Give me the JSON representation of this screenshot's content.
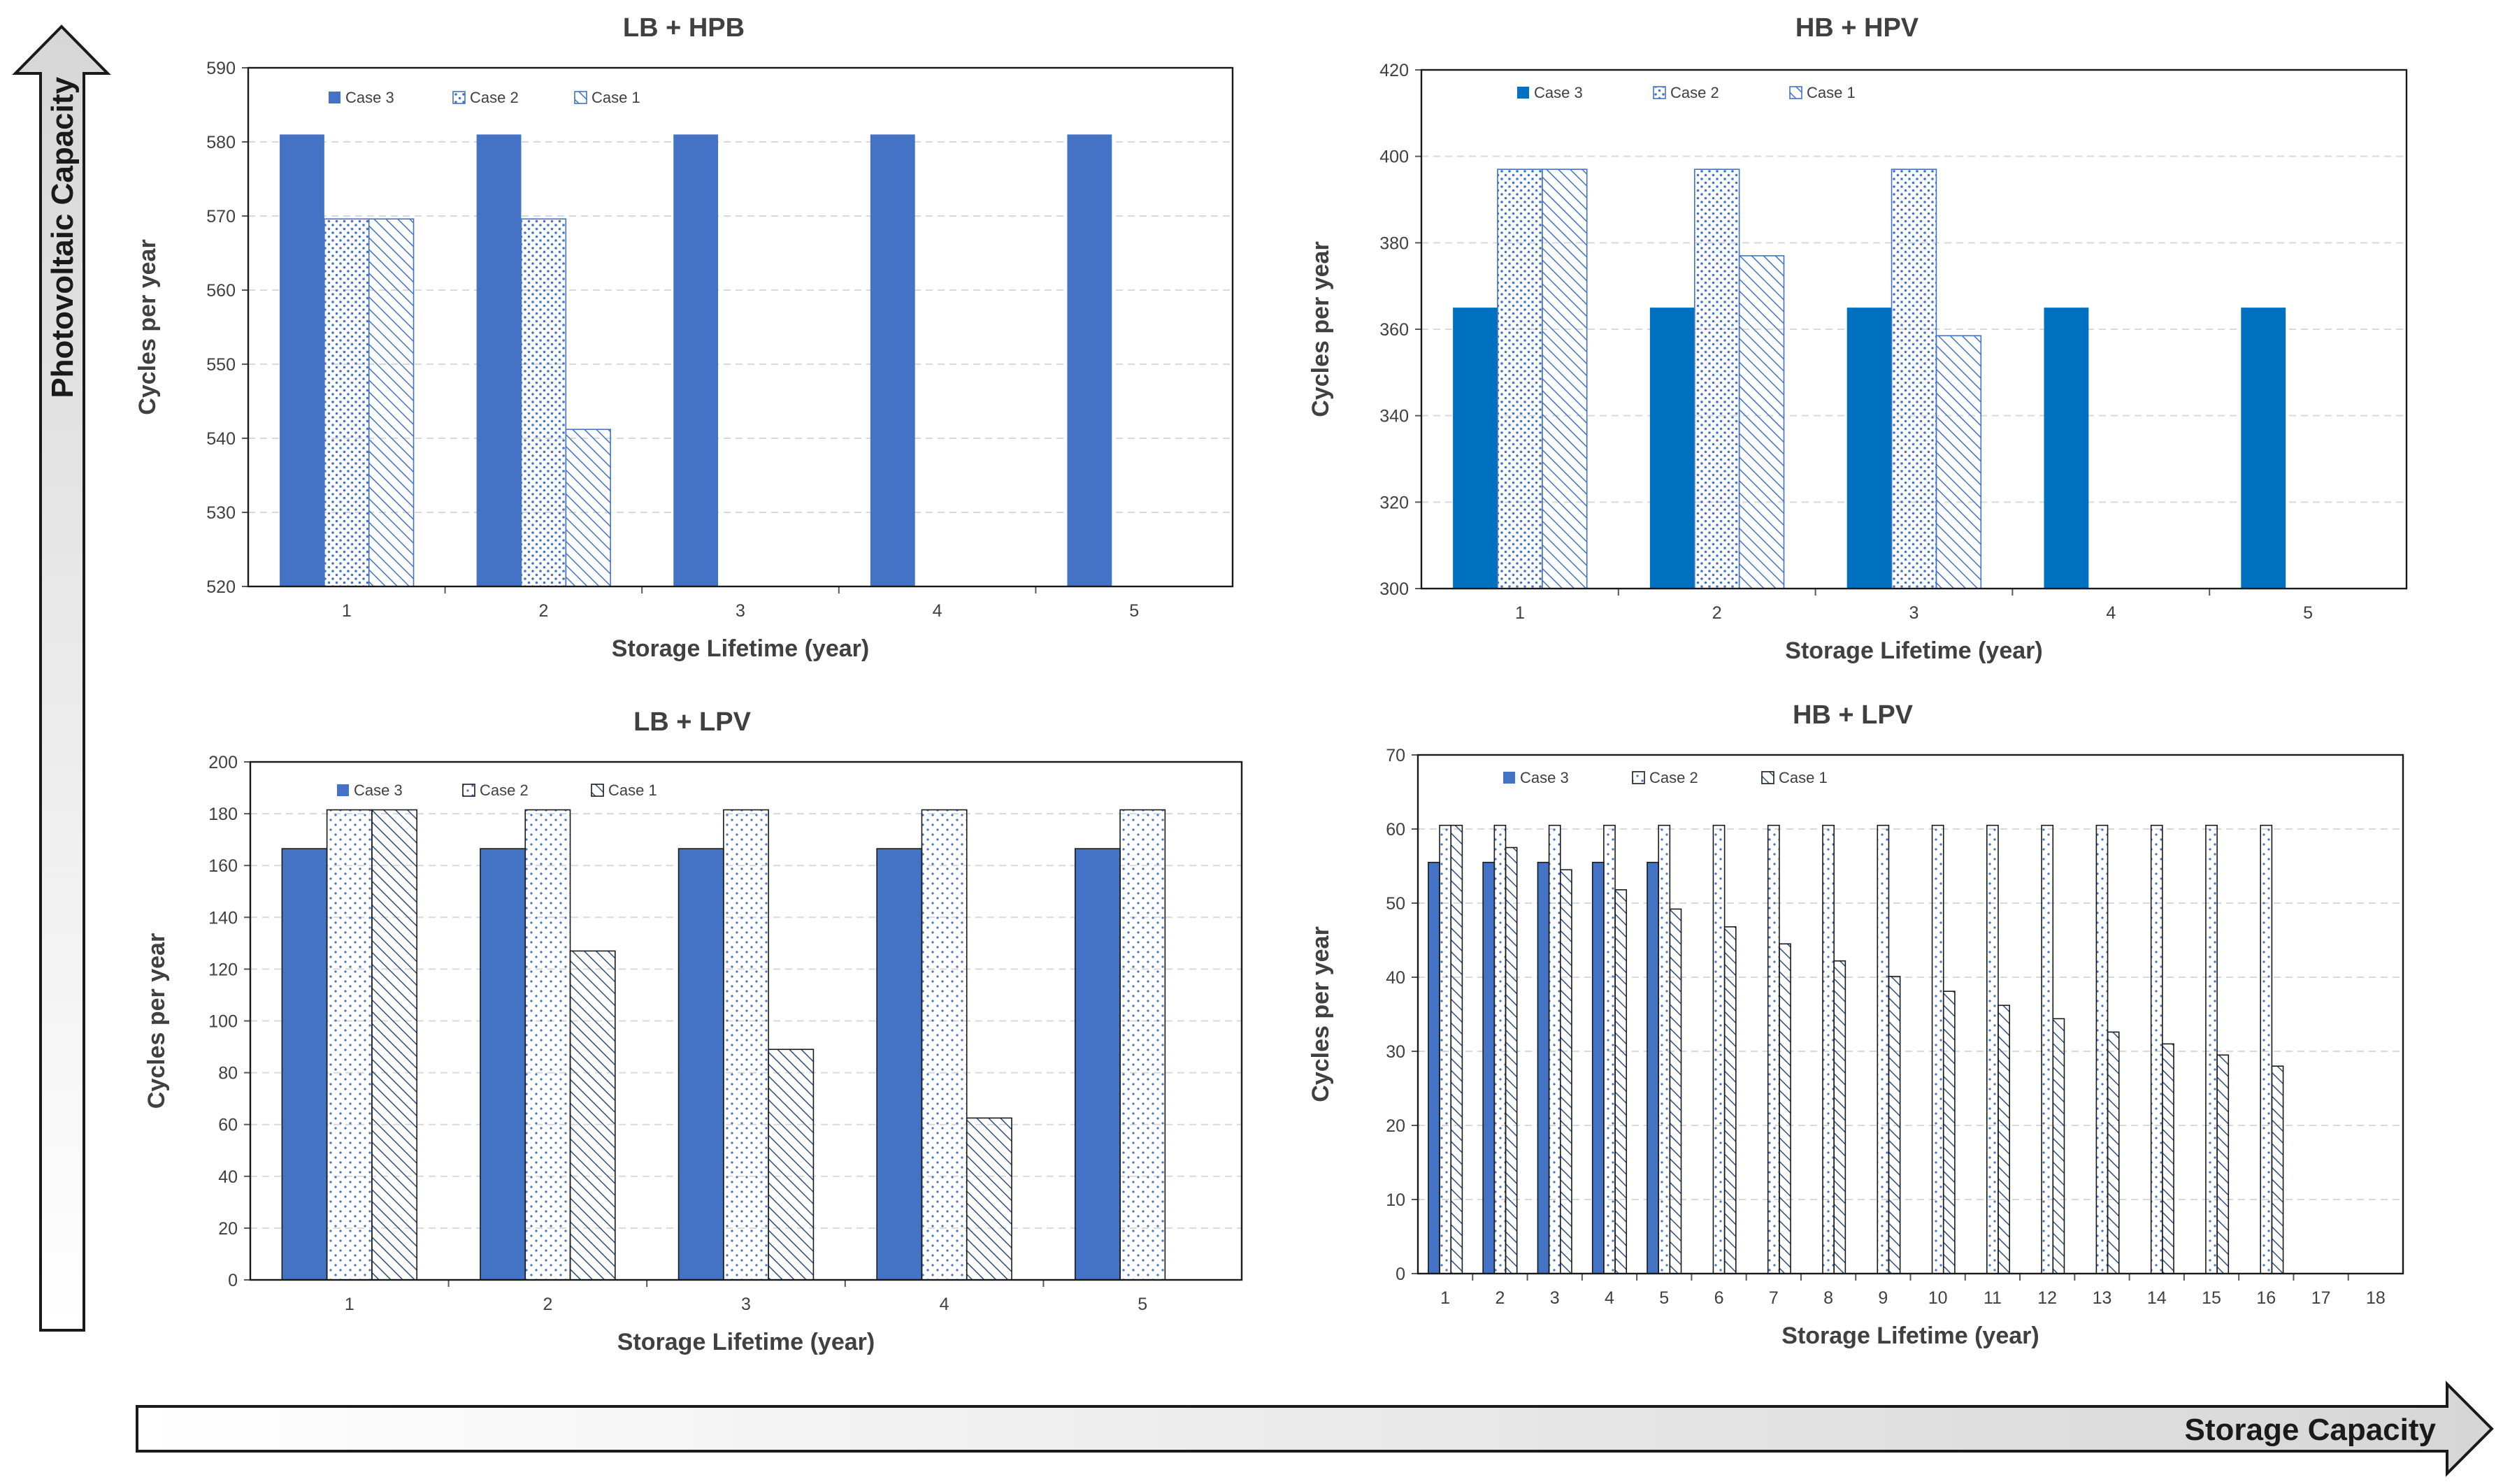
{
  "figure": {
    "y_arrow_label": "Photovoltaic Capacity",
    "x_arrow_label": "Storage Capacity"
  },
  "colors": {
    "case3_primary": "#4472c4",
    "case3_alt": "#0070c0",
    "case2_dots": "#4472c4",
    "case1_hatch": "#4472c4",
    "gridline": "#d9d9d9",
    "text": "#404040"
  },
  "chart_data": [
    {
      "id": "lb-hpb",
      "type": "bar",
      "title": "LB + HPB",
      "xlabel": "Storage Lifetime (year)",
      "ylabel": "Cycles per year",
      "ylim": [
        520,
        590
      ],
      "yticks": [
        520,
        530,
        540,
        550,
        560,
        570,
        580,
        590
      ],
      "categories": [
        "1",
        "2",
        "3",
        "4",
        "5"
      ],
      "series": [
        {
          "name": "Case 3",
          "style": "solid",
          "values": [
            581,
            581,
            581,
            581,
            581
          ]
        },
        {
          "name": "Case 2",
          "style": "dots",
          "values": [
            569.6,
            569.6,
            null,
            null,
            null
          ]
        },
        {
          "name": "Case 1",
          "style": "hatch",
          "values": [
            569.6,
            541.2,
            null,
            null,
            null
          ]
        }
      ],
      "legend": "top-left"
    },
    {
      "id": "hb-hpv",
      "type": "bar",
      "title": "HB + HPV",
      "xlabel": "Storage Lifetime (year)",
      "ylabel": "Cycles per year",
      "ylim": [
        300,
        420
      ],
      "yticks": [
        300,
        320,
        340,
        360,
        380,
        400,
        420
      ],
      "categories": [
        "1",
        "2",
        "3",
        "4",
        "5"
      ],
      "series": [
        {
          "name": "Case 3",
          "style": "solid",
          "values": [
            365,
            365,
            365,
            365,
            365
          ]
        },
        {
          "name": "Case 2",
          "style": "dots",
          "values": [
            397,
            397,
            397,
            null,
            null
          ]
        },
        {
          "name": "Case 1",
          "style": "hatch",
          "values": [
            397,
            377,
            358.5,
            null,
            null
          ]
        }
      ],
      "legend": "top-left"
    },
    {
      "id": "lb-lpv",
      "type": "bar",
      "title": "LB + LPV",
      "xlabel": "Storage Lifetime (year)",
      "ylabel": "Cycles per year",
      "ylim": [
        0,
        200
      ],
      "yticks": [
        0,
        20,
        40,
        60,
        80,
        100,
        120,
        140,
        160,
        180,
        200
      ],
      "categories": [
        "1",
        "2",
        "3",
        "4",
        "5"
      ],
      "series": [
        {
          "name": "Case 3",
          "style": "solid",
          "values": [
            166.5,
            166.5,
            166.5,
            166.5,
            166.5
          ]
        },
        {
          "name": "Case 2",
          "style": "dots",
          "values": [
            181.5,
            181.5,
            181.5,
            181.5,
            181.5
          ]
        },
        {
          "name": "Case 1",
          "style": "hatch",
          "values": [
            181.5,
            127,
            89,
            62.5,
            null
          ]
        }
      ],
      "legend": "top-left"
    },
    {
      "id": "hb-lpv",
      "type": "bar",
      "title": "HB + LPV",
      "xlabel": "Storage Lifetime (year)",
      "ylabel": "Cycles per year",
      "ylim": [
        0,
        70
      ],
      "yticks": [
        0,
        10,
        20,
        30,
        40,
        50,
        60,
        70
      ],
      "categories": [
        "1",
        "2",
        "3",
        "4",
        "5",
        "6",
        "7",
        "8",
        "9",
        "10",
        "11",
        "12",
        "13",
        "14",
        "15",
        "16",
        "17",
        "18"
      ],
      "series": [
        {
          "name": "Case 3",
          "style": "solid",
          "values": [
            55.5,
            55.5,
            55.5,
            55.5,
            55.5,
            null,
            null,
            null,
            null,
            null,
            null,
            null,
            null,
            null,
            null,
            null,
            null,
            null
          ]
        },
        {
          "name": "Case 2",
          "style": "dots",
          "values": [
            60.5,
            60.5,
            60.5,
            60.5,
            60.5,
            60.5,
            60.5,
            60.5,
            60.5,
            60.5,
            60.5,
            60.5,
            60.5,
            60.5,
            60.5,
            60.5,
            null,
            null
          ]
        },
        {
          "name": "Case 1",
          "style": "hatch",
          "values": [
            60.5,
            57.5,
            54.5,
            51.8,
            49.2,
            46.8,
            44.5,
            42.2,
            40.1,
            38.1,
            36.2,
            34.4,
            32.6,
            31.0,
            29.5,
            28.0,
            null,
            null
          ]
        }
      ],
      "legend": "top-left"
    }
  ]
}
